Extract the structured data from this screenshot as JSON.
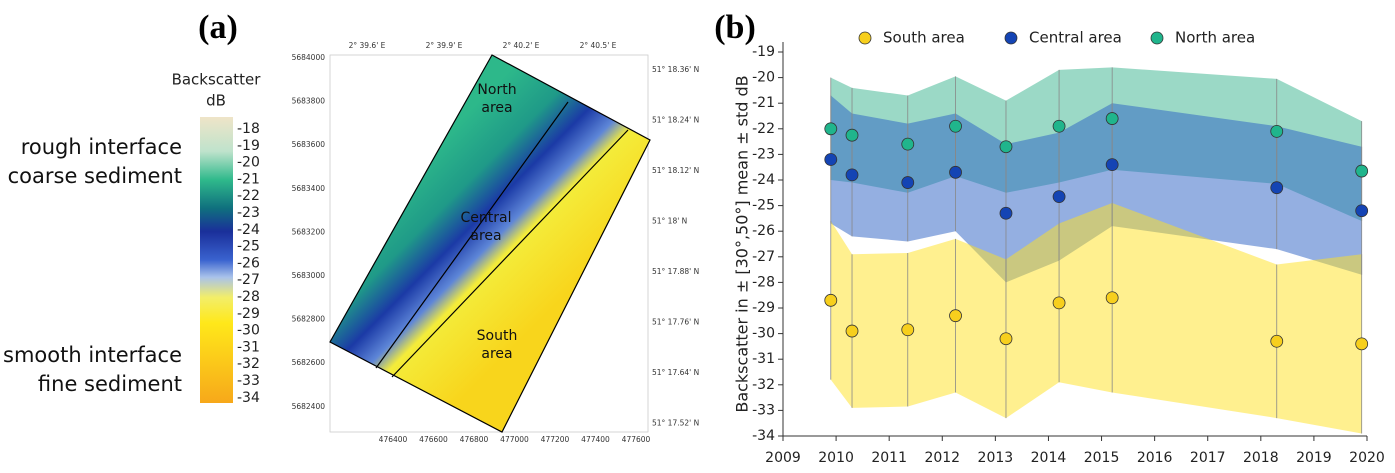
{
  "panel_a": {
    "label": "(a)",
    "colorbar_title": [
      "Backscatter",
      "dB"
    ],
    "colorbar_ticks": [
      -18,
      -19,
      -20,
      -21,
      -22,
      -23,
      -24,
      -25,
      -26,
      -27,
      -28,
      -29,
      -30,
      -31,
      -32,
      -33,
      -34
    ],
    "rough_label": [
      "rough interface",
      "coarse sediment"
    ],
    "smooth_label": [
      "smooth interface",
      "fine sediment"
    ],
    "top_ticks": [
      "2° 39.6' E",
      "2° 39.9' E",
      "2° 40.2' E",
      "2° 40.5' E"
    ],
    "left_ticks": [
      5684000,
      5683800,
      5683600,
      5683400,
      5683200,
      5683000,
      5682800,
      5682600,
      5682400
    ],
    "right_ticks": [
      "51° 18.36' N",
      "51° 18.24' N",
      "51° 18.12' N",
      "51° 18' N",
      "51° 17.88' N",
      "51° 17.76' N",
      "51° 17.64' N",
      "51° 17.52' N"
    ],
    "bottom_ticks": [
      476400,
      476600,
      476800,
      477000,
      477200,
      477400,
      477600
    ],
    "areas": [
      [
        "North",
        "area"
      ],
      [
        "Central",
        "area"
      ],
      [
        "South",
        "area"
      ]
    ]
  },
  "chart_data": {
    "type": "band",
    "label": "(b)",
    "y_label": "Backscatter in ± [30°,50°] mean ± std dB",
    "x": [
      2009.9,
      2010.3,
      2011.35,
      2012.25,
      2013.2,
      2014.2,
      2015.2,
      2018.3,
      2019.9
    ],
    "xlim": [
      2009,
      2020
    ],
    "xticks": [
      2009,
      2010,
      2011,
      2012,
      2013,
      2014,
      2015,
      2016,
      2017,
      2018,
      2019,
      2020
    ],
    "ylim": [
      -34,
      -19
    ],
    "yticks": [
      -19,
      -20,
      -21,
      -22,
      -23,
      -24,
      -25,
      -26,
      -27,
      -28,
      -29,
      -30,
      -31,
      -32,
      -33,
      -34
    ],
    "series": [
      {
        "name": "South area",
        "color": "#f7cf1d",
        "band_color": "#ffe21f",
        "values": [
          -28.7,
          -29.9,
          -29.85,
          -29.3,
          -30.2,
          -28.8,
          -28.6,
          -30.3,
          -30.4
        ],
        "std": [
          3.1,
          3.0,
          3.0,
          3.0,
          3.1,
          3.1,
          3.7,
          3.0,
          3.5
        ]
      },
      {
        "name": "Central area",
        "color": "#1444b4",
        "band_color": "#2a5fc4",
        "values": [
          -23.2,
          -23.8,
          -24.1,
          -23.7,
          -25.3,
          -24.65,
          -23.4,
          -24.3,
          -25.2
        ],
        "std": [
          2.5,
          2.4,
          2.3,
          2.3,
          2.7,
          2.5,
          2.4,
          2.4,
          2.5
        ]
      },
      {
        "name": "North area",
        "color": "#20b58c",
        "band_color": "#38b48e",
        "values": [
          -22.0,
          -22.25,
          -22.6,
          -21.9,
          -22.7,
          -21.9,
          -21.6,
          -22.1,
          -23.65
        ],
        "std": [
          2.0,
          1.85,
          1.9,
          1.95,
          1.8,
          2.2,
          2.0,
          2.05,
          1.95
        ]
      }
    ]
  }
}
